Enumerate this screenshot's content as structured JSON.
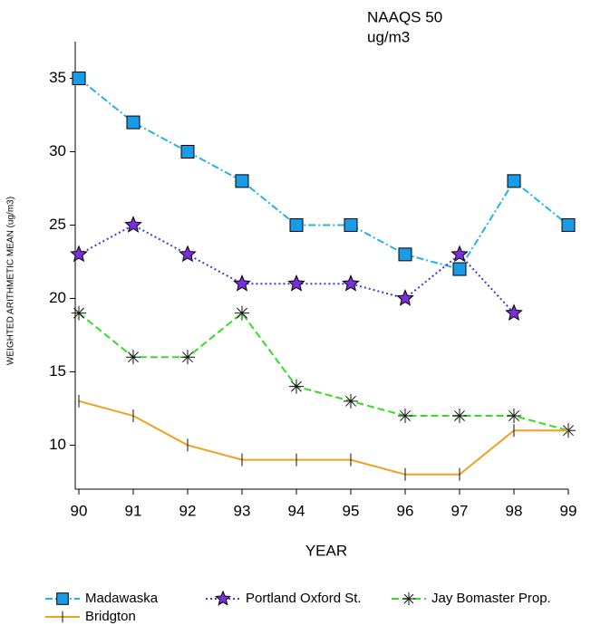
{
  "chart_data": {
    "type": "line",
    "annotation": [
      "NAAQS 50",
      "ug/m3"
    ],
    "x_label": "YEAR",
    "y_label": "WEIGHTED ARITHMETIC MEAN (ug/m3)",
    "x": [
      90,
      91,
      92,
      93,
      94,
      95,
      96,
      97,
      98,
      99
    ],
    "xlim": [
      90,
      99
    ],
    "xticks": [
      90,
      91,
      92,
      93,
      94,
      95,
      96,
      97,
      98,
      99
    ],
    "ylim": [
      7,
      37.5
    ],
    "yticks": [
      10,
      15,
      20,
      25,
      30,
      35
    ],
    "grid": false,
    "legend": "bottom",
    "series": [
      {
        "name": "Madawaska",
        "color": "#1a9be8",
        "line_color": "#22b4e6",
        "line_style": "dashdot",
        "marker": "square",
        "values": [
          35,
          32,
          30,
          28,
          25,
          25,
          23,
          22,
          28,
          25
        ]
      },
      {
        "name": "Portland Oxford St.",
        "color": "#7a2ee0",
        "line_color": "#3a3ad8",
        "line_style": "dotted",
        "marker": "star",
        "values": [
          23,
          25,
          23,
          21,
          21,
          21,
          20,
          23,
          19,
          null
        ]
      },
      {
        "name": "Jay Bomaster Prop.",
        "color": "#111111",
        "line_color": "#33dd22",
        "line_style": "dashed",
        "marker": "asterisk",
        "values": [
          19,
          16,
          16,
          19,
          14,
          13,
          12,
          12,
          12,
          11
        ]
      },
      {
        "name": "Bridgton",
        "color": "#111111",
        "line_color": "#f0a020",
        "line_style": "solid",
        "marker": "vtick",
        "values": [
          13,
          12,
          10,
          9,
          9,
          9,
          8,
          8,
          11,
          11
        ]
      }
    ]
  }
}
